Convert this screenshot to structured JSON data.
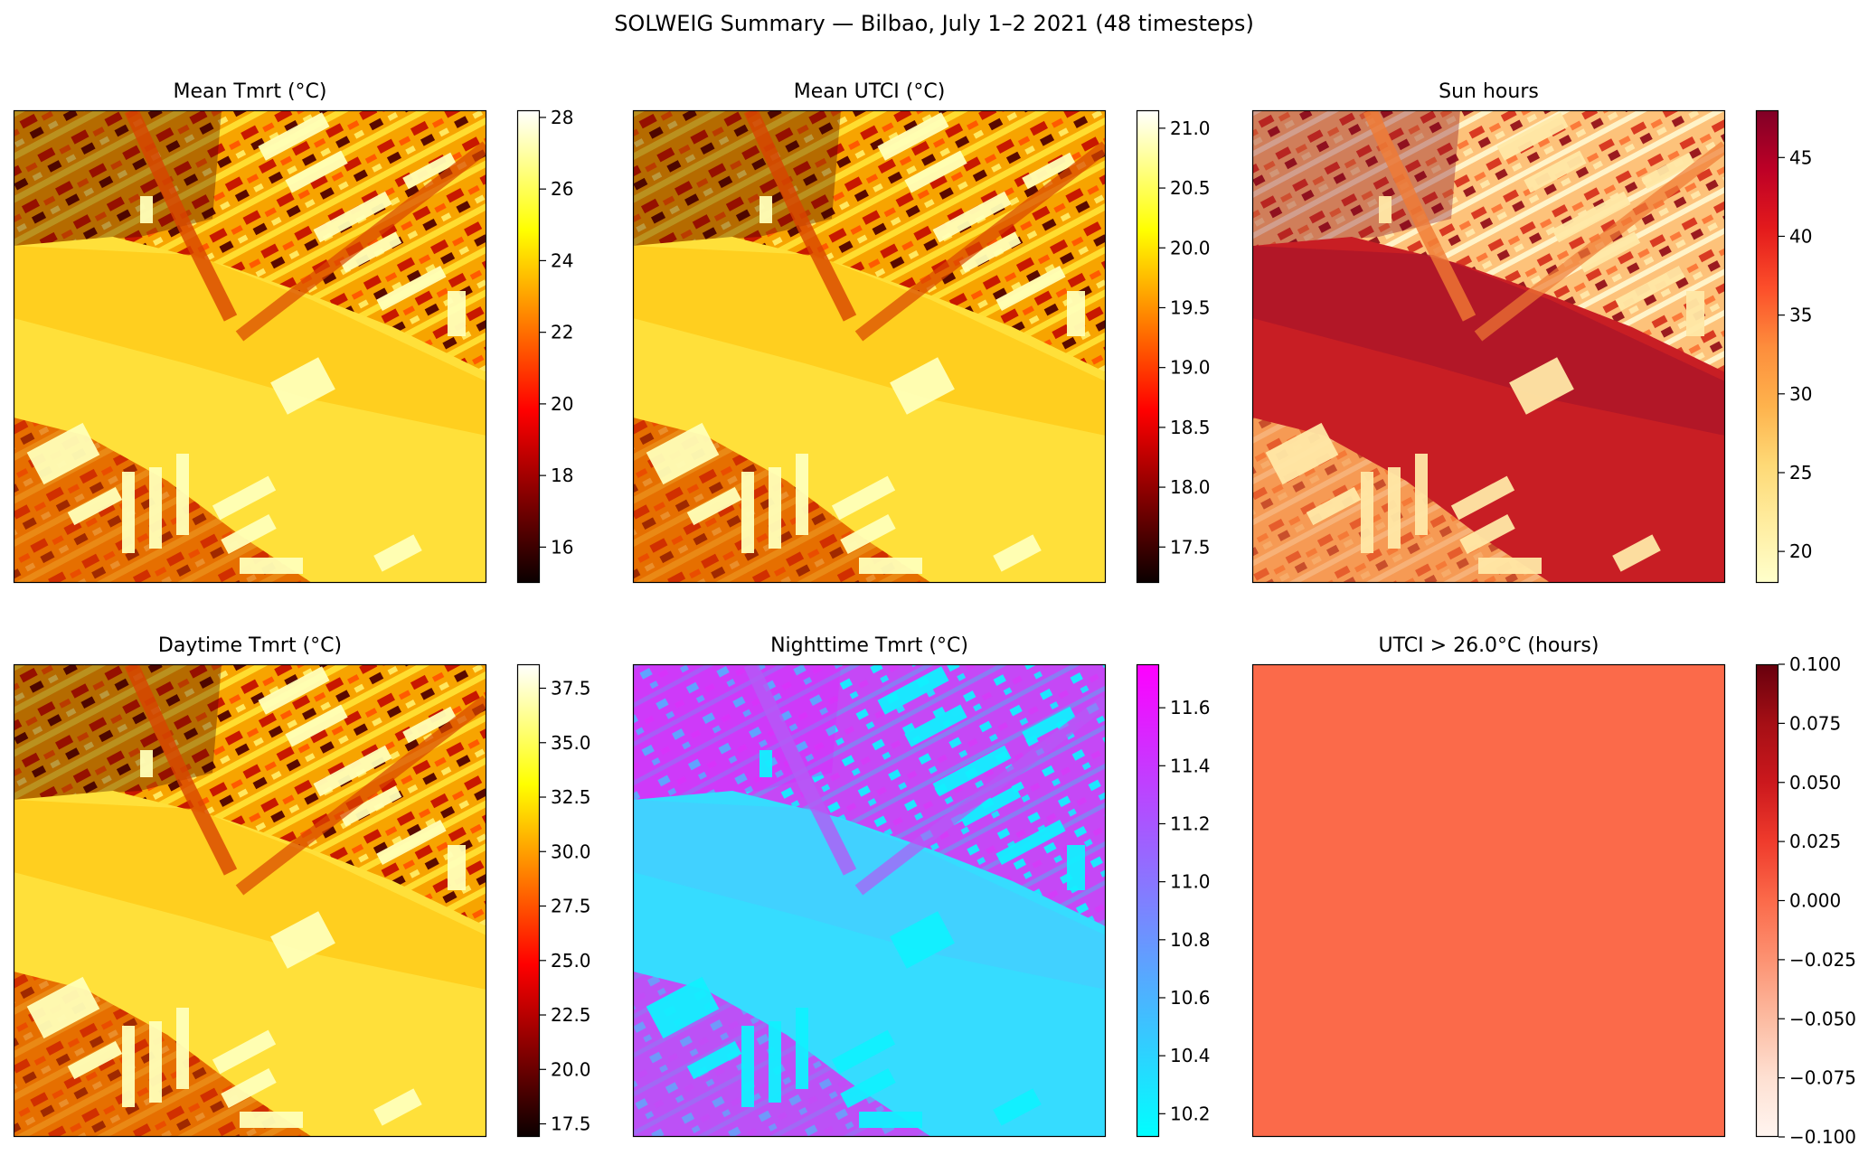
{
  "figure": {
    "title": "SOLWEIG Summary — Bilbao, July 1–2 2021 (48 timesteps)"
  },
  "chart_data": [
    {
      "type": "heatmap",
      "title": "Mean Tmrt (°C)",
      "colormap": "hot",
      "colorbar": {
        "range": [
          15.0,
          28.2
        ],
        "ticks": [
          16,
          18,
          20,
          22,
          24,
          26,
          28
        ],
        "tick_labels": [
          "16",
          "18",
          "20",
          "22",
          "24",
          "26",
          "28"
        ]
      },
      "axes_ticks": false
    },
    {
      "type": "heatmap",
      "title": "Mean UTCI (°C)",
      "colormap": "hot",
      "colorbar": {
        "range": [
          17.2,
          21.15
        ],
        "ticks": [
          17.5,
          18.0,
          18.5,
          19.0,
          19.5,
          20.0,
          20.5,
          21.0
        ],
        "tick_labels": [
          "17.5",
          "18.0",
          "18.5",
          "19.0",
          "19.5",
          "20.0",
          "20.5",
          "21.0"
        ]
      },
      "axes_ticks": false
    },
    {
      "type": "heatmap",
      "title": "Sun hours",
      "colormap": "YlOrRd",
      "colorbar": {
        "range": [
          18.0,
          48.0
        ],
        "ticks": [
          20,
          25,
          30,
          35,
          40,
          45
        ],
        "tick_labels": [
          "20",
          "25",
          "30",
          "35",
          "40",
          "45"
        ]
      },
      "axes_ticks": false
    },
    {
      "type": "heatmap",
      "title": "Daytime Tmrt (°C)",
      "colormap": "hot",
      "colorbar": {
        "range": [
          16.9,
          38.6
        ],
        "ticks": [
          17.5,
          20.0,
          22.5,
          25.0,
          27.5,
          30.0,
          32.5,
          35.0,
          37.5
        ],
        "tick_labels": [
          "17.5",
          "20.0",
          "22.5",
          "25.0",
          "27.5",
          "30.0",
          "32.5",
          "35.0",
          "37.5"
        ]
      },
      "axes_ticks": false
    },
    {
      "type": "heatmap",
      "title": "Nighttime Tmrt (°C)",
      "colormap": "cool",
      "colorbar": {
        "range": [
          10.12,
          11.75
        ],
        "ticks": [
          10.2,
          10.4,
          10.6,
          10.8,
          11.0,
          11.2,
          11.4,
          11.6
        ],
        "tick_labels": [
          "10.2",
          "10.4",
          "10.6",
          "10.8",
          "11.0",
          "11.2",
          "11.4",
          "11.6"
        ]
      },
      "axes_ticks": false
    },
    {
      "type": "heatmap",
      "title": "UTCI > 26.0°C (hours)",
      "colormap": "Reds",
      "uniform_value": 0.0,
      "colorbar": {
        "range": [
          -0.1,
          0.1
        ],
        "ticks": [
          -0.1,
          -0.075,
          -0.05,
          -0.025,
          0.0,
          0.025,
          0.05,
          0.075,
          0.1
        ],
        "tick_labels": [
          "−0.100",
          "−0.075",
          "−0.050",
          "−0.025",
          "0.000",
          "0.025",
          "0.050",
          "0.075",
          "0.100"
        ]
      },
      "axes_ticks": false
    }
  ]
}
